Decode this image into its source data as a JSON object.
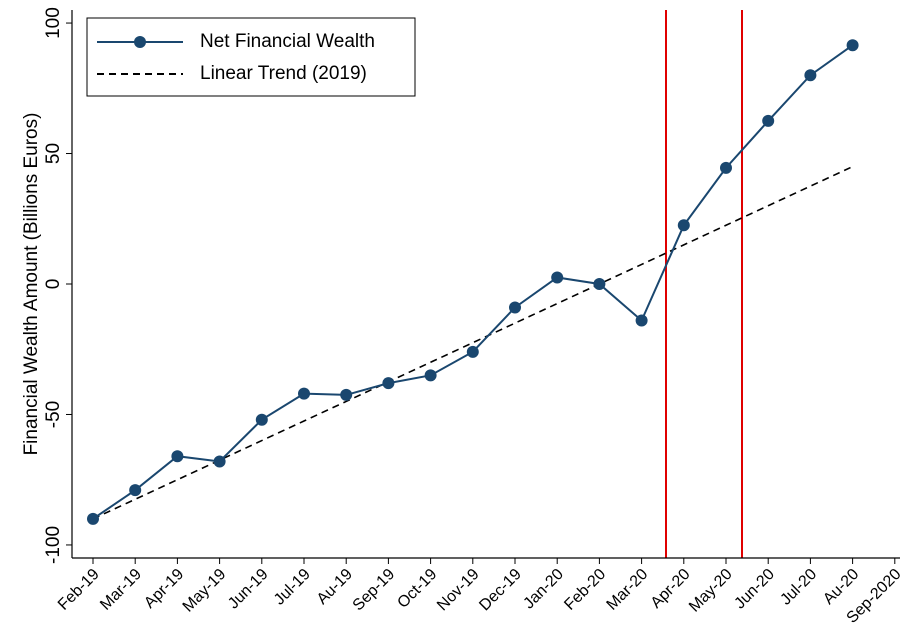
{
  "chart_data": {
    "type": "line",
    "y_label": "Financial Wealth Amount (Billions Euros)",
    "categories": [
      "Feb-19",
      "Mar-19",
      "Apr-19",
      "May-19",
      "Jun-19",
      "Jul-19",
      "Au-19",
      "Sep-19",
      "Oct-19",
      "Nov-19",
      "Dec-19",
      "Jan-20",
      "Feb-20",
      "Mar-20",
      "Apr-20",
      "May-20",
      "Jun-20",
      "Jul-20",
      "Au-20",
      "Sep-2020"
    ],
    "series": [
      {
        "name": "Net Financial Wealth",
        "color": "#1a476f",
        "style": "solid-marker",
        "values": [
          -90,
          -79,
          -66,
          -68,
          -52,
          -42,
          -42.5,
          -38,
          -35,
          -26,
          -9,
          2.5,
          0,
          -14,
          22.5,
          44.5,
          62.5,
          80,
          91.5,
          null
        ]
      },
      {
        "name": "Linear Trend (2019)",
        "color": "#000000",
        "style": "dashed",
        "values": [
          -90,
          -82.5,
          -75,
          -67.5,
          -60,
          -52.5,
          -45,
          -37.5,
          -30,
          -22.5,
          -15,
          -7.5,
          0,
          7.5,
          15,
          22.5,
          30,
          37.5,
          45,
          null
        ]
      }
    ],
    "ylim": [
      -105,
      105
    ],
    "yticks": [
      -100,
      -50,
      0,
      50,
      100
    ],
    "grid": false
  }
}
